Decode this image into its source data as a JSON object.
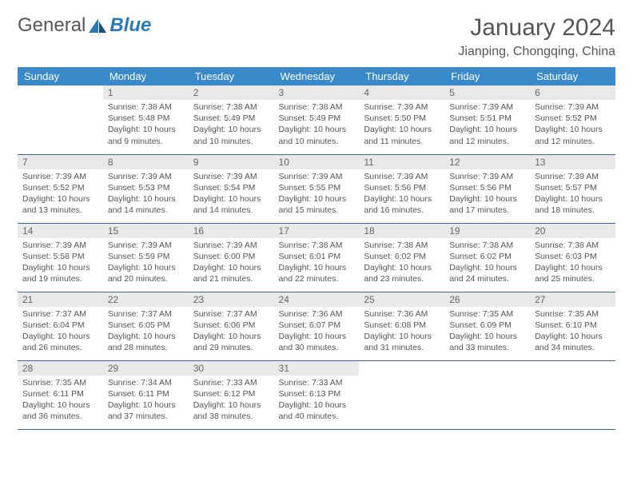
{
  "logo": {
    "general": "General",
    "blue": "Blue"
  },
  "title": "January 2024",
  "location": "Jianping, Chongqing, China",
  "colors": {
    "header_bg": "#3a89c9",
    "header_text": "#ffffff",
    "daynum_bg": "#e9e9e9",
    "daynum_text": "#666666",
    "body_text": "#555555",
    "row_border": "#3a6a9a",
    "logo_blue": "#2a7ab8",
    "page_bg": "#ffffff"
  },
  "daysOfWeek": [
    "Sunday",
    "Monday",
    "Tuesday",
    "Wednesday",
    "Thursday",
    "Friday",
    "Saturday"
  ],
  "startOffset": 1,
  "daysInMonth": 31,
  "days": {
    "1": {
      "sunrise": "7:38 AM",
      "sunset": "5:48 PM",
      "daylight": "10 hours and 9 minutes."
    },
    "2": {
      "sunrise": "7:38 AM",
      "sunset": "5:49 PM",
      "daylight": "10 hours and 10 minutes."
    },
    "3": {
      "sunrise": "7:38 AM",
      "sunset": "5:49 PM",
      "daylight": "10 hours and 10 minutes."
    },
    "4": {
      "sunrise": "7:39 AM",
      "sunset": "5:50 PM",
      "daylight": "10 hours and 11 minutes."
    },
    "5": {
      "sunrise": "7:39 AM",
      "sunset": "5:51 PM",
      "daylight": "10 hours and 12 minutes."
    },
    "6": {
      "sunrise": "7:39 AM",
      "sunset": "5:52 PM",
      "daylight": "10 hours and 12 minutes."
    },
    "7": {
      "sunrise": "7:39 AM",
      "sunset": "5:52 PM",
      "daylight": "10 hours and 13 minutes."
    },
    "8": {
      "sunrise": "7:39 AM",
      "sunset": "5:53 PM",
      "daylight": "10 hours and 14 minutes."
    },
    "9": {
      "sunrise": "7:39 AM",
      "sunset": "5:54 PM",
      "daylight": "10 hours and 14 minutes."
    },
    "10": {
      "sunrise": "7:39 AM",
      "sunset": "5:55 PM",
      "daylight": "10 hours and 15 minutes."
    },
    "11": {
      "sunrise": "7:39 AM",
      "sunset": "5:56 PM",
      "daylight": "10 hours and 16 minutes."
    },
    "12": {
      "sunrise": "7:39 AM",
      "sunset": "5:56 PM",
      "daylight": "10 hours and 17 minutes."
    },
    "13": {
      "sunrise": "7:39 AM",
      "sunset": "5:57 PM",
      "daylight": "10 hours and 18 minutes."
    },
    "14": {
      "sunrise": "7:39 AM",
      "sunset": "5:58 PM",
      "daylight": "10 hours and 19 minutes."
    },
    "15": {
      "sunrise": "7:39 AM",
      "sunset": "5:59 PM",
      "daylight": "10 hours and 20 minutes."
    },
    "16": {
      "sunrise": "7:39 AM",
      "sunset": "6:00 PM",
      "daylight": "10 hours and 21 minutes."
    },
    "17": {
      "sunrise": "7:38 AM",
      "sunset": "6:01 PM",
      "daylight": "10 hours and 22 minutes."
    },
    "18": {
      "sunrise": "7:38 AM",
      "sunset": "6:02 PM",
      "daylight": "10 hours and 23 minutes."
    },
    "19": {
      "sunrise": "7:38 AM",
      "sunset": "6:02 PM",
      "daylight": "10 hours and 24 minutes."
    },
    "20": {
      "sunrise": "7:38 AM",
      "sunset": "6:03 PM",
      "daylight": "10 hours and 25 minutes."
    },
    "21": {
      "sunrise": "7:37 AM",
      "sunset": "6:04 PM",
      "daylight": "10 hours and 26 minutes."
    },
    "22": {
      "sunrise": "7:37 AM",
      "sunset": "6:05 PM",
      "daylight": "10 hours and 28 minutes."
    },
    "23": {
      "sunrise": "7:37 AM",
      "sunset": "6:06 PM",
      "daylight": "10 hours and 29 minutes."
    },
    "24": {
      "sunrise": "7:36 AM",
      "sunset": "6:07 PM",
      "daylight": "10 hours and 30 minutes."
    },
    "25": {
      "sunrise": "7:36 AM",
      "sunset": "6:08 PM",
      "daylight": "10 hours and 31 minutes."
    },
    "26": {
      "sunrise": "7:35 AM",
      "sunset": "6:09 PM",
      "daylight": "10 hours and 33 minutes."
    },
    "27": {
      "sunrise": "7:35 AM",
      "sunset": "6:10 PM",
      "daylight": "10 hours and 34 minutes."
    },
    "28": {
      "sunrise": "7:35 AM",
      "sunset": "6:11 PM",
      "daylight": "10 hours and 36 minutes."
    },
    "29": {
      "sunrise": "7:34 AM",
      "sunset": "6:11 PM",
      "daylight": "10 hours and 37 minutes."
    },
    "30": {
      "sunrise": "7:33 AM",
      "sunset": "6:12 PM",
      "daylight": "10 hours and 38 minutes."
    },
    "31": {
      "sunrise": "7:33 AM",
      "sunset": "6:13 PM",
      "daylight": "10 hours and 40 minutes."
    }
  },
  "labels": {
    "sunrise": "Sunrise:",
    "sunset": "Sunset:",
    "daylight": "Daylight:"
  }
}
